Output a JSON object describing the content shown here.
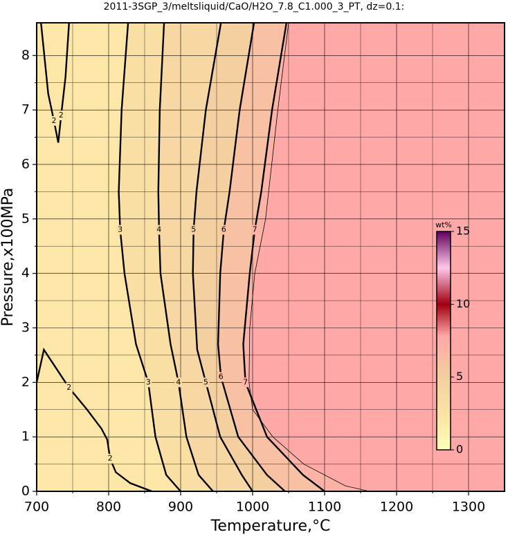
{
  "chart_data": {
    "type": "contour",
    "title": "2011-3SGP_3/meltsliquid/CaO/H2O_7.8_C1.000_3_PT, dz=0.1:",
    "x_label": "Temperature,°C",
    "y_label": "Pressure,x100MPa",
    "xlim": [
      700,
      1350
    ],
    "ylim": [
      0,
      8.6
    ],
    "xticks": [
      700,
      800,
      900,
      1000,
      1100,
      1200,
      1300
    ],
    "yticks": [
      0,
      1,
      2,
      3,
      4,
      5,
      6,
      7,
      8
    ],
    "xminorticks": [
      750,
      850,
      950,
      1050,
      1150,
      1250
    ],
    "yminorticks": [
      0.5,
      1.5,
      2.5,
      3.5,
      4.5,
      5.5,
      6.5,
      7.5
    ],
    "grid": true,
    "contours": [
      {
        "level": 2,
        "label": "2",
        "x": [
          706,
          716,
          724,
          730,
          734,
          740,
          745
        ],
        "y": [
          8.6,
          7.3,
          6.8,
          6.4,
          6.9,
          7.6,
          8.6
        ]
      },
      {
        "level": 2,
        "label": "2",
        "x": [
          700,
          710,
          725,
          745,
          770,
          790,
          798,
          802,
          810,
          830,
          860
        ],
        "y": [
          2.0,
          2.6,
          2.3,
          1.9,
          1.5,
          1.15,
          0.95,
          0.6,
          0.35,
          0.15,
          0.0
        ]
      },
      {
        "level": 3,
        "label": "3",
        "x": [
          827,
          818,
          814,
          816,
          822,
          838,
          855,
          865,
          880,
          900
        ],
        "y": [
          8.6,
          7.0,
          5.5,
          4.8,
          4.0,
          2.7,
          2.0,
          1.0,
          0.3,
          0.0
        ]
      },
      {
        "level": 4,
        "label": "4",
        "x": [
          877,
          871,
          869,
          870,
          872,
          886,
          897,
          908,
          925,
          945
        ],
        "y": [
          8.6,
          7.0,
          5.5,
          4.8,
          4.0,
          2.7,
          2.0,
          1.0,
          0.3,
          0.0
        ]
      },
      {
        "level": 5,
        "label": "5",
        "x": [
          956,
          935,
          922,
          918,
          917,
          923,
          935,
          955,
          985,
          1000
        ],
        "y": [
          8.6,
          7.0,
          5.5,
          4.8,
          4.0,
          2.6,
          2.0,
          1.0,
          0.3,
          0.0
        ]
      },
      {
        "level": 6,
        "label": "6",
        "x": [
          1002,
          982,
          968,
          960,
          955,
          952,
          956,
          980,
          1020,
          1045
        ],
        "y": [
          8.6,
          7.0,
          5.5,
          4.8,
          4.0,
          2.7,
          2.1,
          1.0,
          0.3,
          0.0
        ]
      },
      {
        "level": 7,
        "label": "7",
        "x": [
          1047,
          1027,
          1012,
          1003,
          996,
          987,
          990,
          1020,
          1070,
          1100
        ],
        "y": [
          8.6,
          7.0,
          5.5,
          4.8,
          4.0,
          2.7,
          2.0,
          1.0,
          0.3,
          0.0
        ]
      },
      {
        "level": 7.8,
        "x": [
          1050,
          1035,
          1018,
          1003,
          996,
          995,
          1000,
          1028,
          1071,
          1129,
          1162
        ],
        "y": [
          8.6,
          7.0,
          5.0,
          4.0,
          3.0,
          2.0,
          1.5,
          1.0,
          0.5,
          0.1,
          0.0
        ]
      }
    ],
    "colorbar": {
      "label": "wt%",
      "lim": [
        0,
        15
      ],
      "ticks": [
        0,
        5,
        10,
        15
      ],
      "stops": [
        0,
        2,
        5,
        7.8,
        10,
        12.5,
        15
      ],
      "colors": [
        "#ffffb8",
        "#fde7a8",
        "#f4cfa0",
        "#ffa8a8",
        "#a00010",
        "#ffc8e8",
        "#600060"
      ]
    }
  }
}
